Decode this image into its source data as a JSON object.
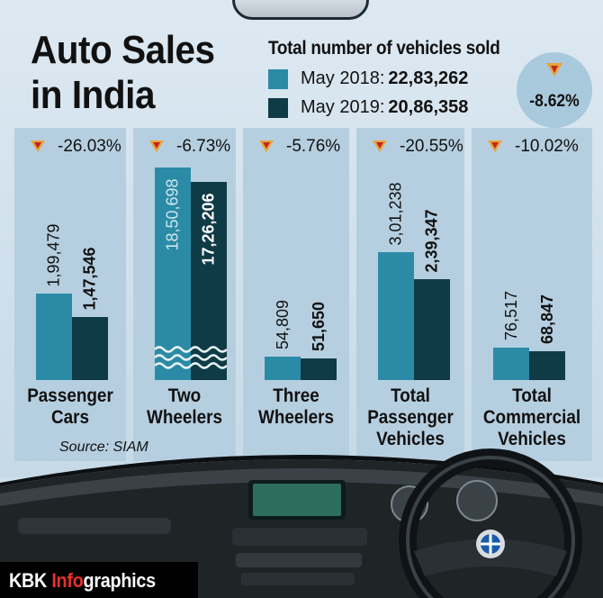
{
  "title": [
    "Auto Sales",
    "in India"
  ],
  "legend": {
    "heading": "Total number of vehicles sold",
    "entries": [
      {
        "label": "May 2018:",
        "value": "22,83,262",
        "color": "#2b8ba6"
      },
      {
        "label": "May 2019:",
        "value": "20,86,358",
        "color": "#0f3b46"
      }
    ]
  },
  "overall_change": "-8.62%",
  "source": "Source: SIAM",
  "brand": {
    "main": "KBK ",
    "accent": "Info",
    "rest": "graphics"
  },
  "colors": {
    "may2018": "#2b8ba6",
    "may2019": "#0f3b46",
    "panel": "#b6cfe0",
    "arrow": "#e8a33a",
    "arrow_tip": "#c0281f"
  },
  "chart_data": {
    "type": "bar",
    "categories": [
      "Passenger Cars",
      "Two Wheelers",
      "Three Wheelers",
      "Total Passenger Vehicles",
      "Total Commercial Vehicles"
    ],
    "category_lines": [
      [
        "Passenger",
        "Cars"
      ],
      [
        "Two",
        "Wheelers"
      ],
      [
        "Three",
        "Wheelers"
      ],
      [
        "Total",
        "Passenger",
        "Vehicles"
      ],
      [
        "Total",
        "Commercial",
        "Vehicles"
      ]
    ],
    "series": [
      {
        "name": "May 2018",
        "values": [
          199479,
          1850698,
          54809,
          301238,
          76517
        ],
        "labels": [
          "1,99,479",
          "18,50,698",
          "54,809",
          "3,01,238",
          "76,517"
        ]
      },
      {
        "name": "May 2019",
        "values": [
          147546,
          1726206,
          51650,
          239347,
          68847
        ],
        "labels": [
          "1,47,546",
          "17,26,206",
          "51,650",
          "2,39,347",
          "68,847"
        ]
      }
    ],
    "changes": [
      "-26.03%",
      "-6.73%",
      "-5.76%",
      "-20.55%",
      "-10.02%"
    ],
    "axis_break_category": "Two Wheelers"
  }
}
